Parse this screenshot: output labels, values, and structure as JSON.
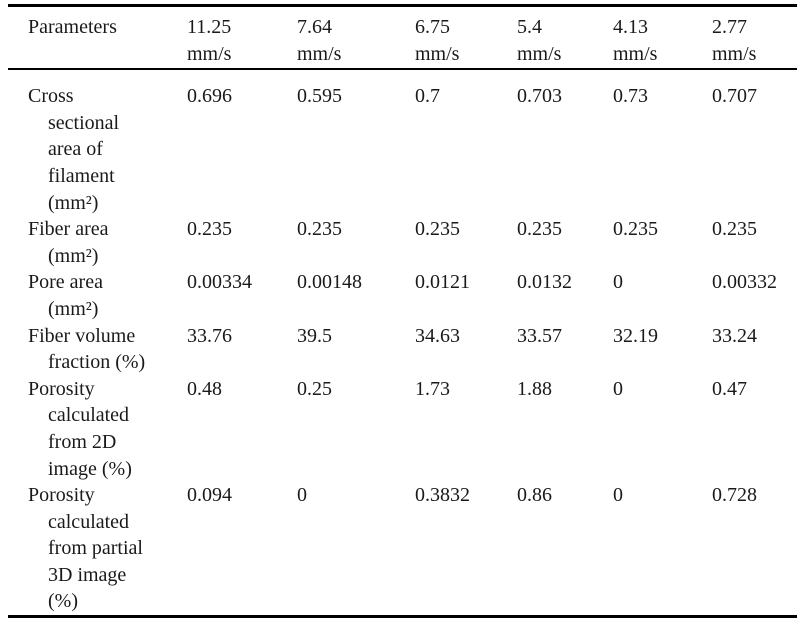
{
  "colors": {
    "text": "#1a1a1a",
    "border": "#000000",
    "background": "#ffffff"
  },
  "table": {
    "header": {
      "parameters_label": "Parameters",
      "speed_columns": [
        {
          "value": "11.25",
          "unit": "mm/s"
        },
        {
          "value": "7.64",
          "unit": "mm/s"
        },
        {
          "value": "6.75",
          "unit": "mm/s"
        },
        {
          "value": "5.4",
          "unit": "mm/s"
        },
        {
          "value": "4.13",
          "unit": "mm/s"
        },
        {
          "value": "2.77",
          "unit": "mm/s"
        }
      ]
    },
    "rows": [
      {
        "label": "Cross sectional area of filament (mm²)",
        "label_lines": [
          "Cross",
          "sectional",
          "area of",
          "filament",
          "(mm²)"
        ],
        "values": [
          "0.696",
          "0.595",
          "0.7",
          "0.703",
          "0.73",
          "0.707"
        ]
      },
      {
        "label": "Fiber area (mm²)",
        "label_lines": [
          "Fiber area",
          "(mm²)"
        ],
        "values": [
          "0.235",
          "0.235",
          "0.235",
          "0.235",
          "0.235",
          "0.235"
        ]
      },
      {
        "label": "Pore area (mm²)",
        "label_lines": [
          "Pore area",
          "(mm²)"
        ],
        "values": [
          "0.00334",
          "0.00148",
          "0.0121",
          "0.0132",
          "0",
          "0.00332"
        ]
      },
      {
        "label": "Fiber volume fraction (%)",
        "label_lines": [
          "Fiber volume",
          "fraction (%)"
        ],
        "values": [
          "33.76",
          "39.5",
          "34.63",
          "33.57",
          "32.19",
          "33.24"
        ]
      },
      {
        "label": "Porosity calculated from 2D image (%)",
        "label_lines": [
          "Porosity",
          "calculated",
          "from 2D",
          "image (%)"
        ],
        "values": [
          "0.48",
          "0.25",
          "1.73",
          "1.88",
          "0",
          "0.47"
        ]
      },
      {
        "label": "Porosity calculated from partial 3D image (%)",
        "label_lines": [
          "Porosity",
          "calculated",
          "from partial",
          "3D image",
          "(%)"
        ],
        "values": [
          "0.094",
          "0",
          "0.3832",
          "0.86",
          "0",
          "0.728"
        ]
      }
    ]
  },
  "chart_data": {
    "type": "table",
    "columns": [
      "Parameters",
      "11.25 mm/s",
      "7.64 mm/s",
      "6.75 mm/s",
      "5.4 mm/s",
      "4.13 mm/s",
      "2.77 mm/s"
    ],
    "rows": [
      [
        "Cross sectional area of filament (mm²)",
        0.696,
        0.595,
        0.7,
        0.703,
        0.73,
        0.707
      ],
      [
        "Fiber area (mm²)",
        0.235,
        0.235,
        0.235,
        0.235,
        0.235,
        0.235
      ],
      [
        "Pore area (mm²)",
        0.00334,
        0.00148,
        0.0121,
        0.0132,
        0,
        0.00332
      ],
      [
        "Fiber volume fraction (%)",
        33.76,
        39.5,
        34.63,
        33.57,
        32.19,
        33.24
      ],
      [
        "Porosity calculated from 2D image (%)",
        0.48,
        0.25,
        1.73,
        1.88,
        0,
        0.47
      ],
      [
        "Porosity calculated from partial 3D image (%)",
        0.094,
        0,
        0.3832,
        0.86,
        0,
        0.728
      ]
    ]
  }
}
